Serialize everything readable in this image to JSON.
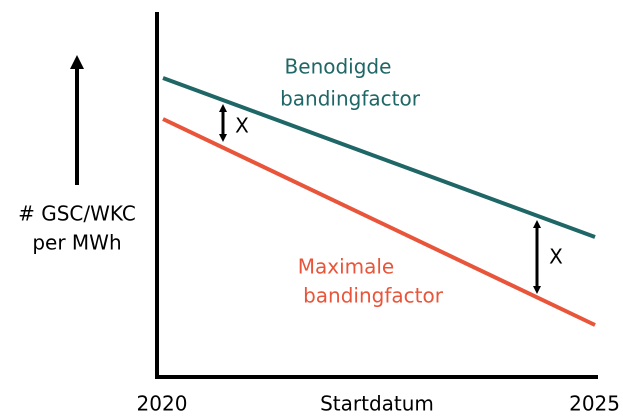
{
  "y_axis_label": [
    "# GSC/WKC",
    "per MWh"
  ],
  "x_axis": {
    "start": "2020",
    "label": "Startdatum",
    "end": "2025"
  },
  "lines": [
    {
      "label": [
        "Benodigde",
        "bandingfactor"
      ]
    },
    {
      "label": [
        "Maximale",
        "bandingfactor"
      ]
    }
  ],
  "gap_labels": [
    "X",
    "X"
  ]
}
